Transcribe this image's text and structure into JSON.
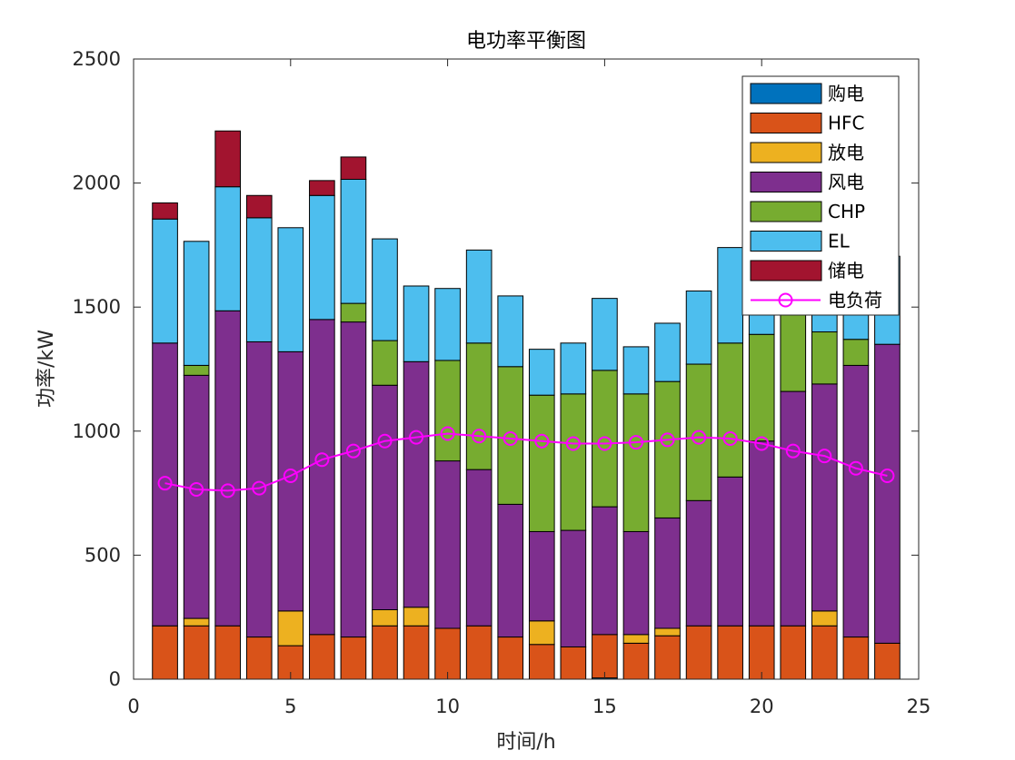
{
  "chart_data": {
    "type": "bar",
    "stacked": true,
    "title": "电功率平衡图",
    "xlabel": "时间/h",
    "ylabel": "功率/kW",
    "xlim": [
      0,
      25
    ],
    "ylim": [
      0,
      2500
    ],
    "xticks": [
      0,
      5,
      10,
      15,
      20,
      25
    ],
    "yticks": [
      0,
      500,
      1000,
      1500,
      2000,
      2500
    ],
    "legend_position": "top-right",
    "grid": false,
    "x": [
      1,
      2,
      3,
      4,
      5,
      6,
      7,
      8,
      9,
      10,
      11,
      12,
      13,
      14,
      15,
      16,
      17,
      18,
      19,
      20,
      21,
      22,
      23,
      24
    ],
    "series": [
      {
        "name": "购电",
        "color": "#0072BD",
        "values": [
          0,
          0,
          0,
          0,
          0,
          0,
          0,
          0,
          0,
          0,
          0,
          0,
          0,
          0,
          5,
          0,
          0,
          0,
          0,
          0,
          0,
          0,
          0,
          0
        ]
      },
      {
        "name": "HFC",
        "color": "#D95319",
        "values": [
          215,
          215,
          215,
          170,
          135,
          180,
          170,
          215,
          215,
          205,
          215,
          170,
          140,
          130,
          175,
          145,
          175,
          215,
          215,
          215,
          215,
          215,
          170,
          145
        ]
      },
      {
        "name": "放电",
        "color": "#EDB120",
        "values": [
          0,
          30,
          0,
          0,
          140,
          0,
          0,
          65,
          75,
          0,
          0,
          0,
          95,
          0,
          0,
          35,
          30,
          0,
          0,
          0,
          0,
          60,
          0,
          0
        ]
      },
      {
        "name": "风电",
        "color": "#7E2F8E",
        "values": [
          1140,
          980,
          1270,
          1190,
          1045,
          1270,
          1270,
          905,
          990,
          675,
          630,
          535,
          360,
          470,
          515,
          415,
          445,
          505,
          600,
          745,
          945,
          915,
          1095,
          1205
        ]
      },
      {
        "name": "CHP",
        "color": "#77AC30",
        "values": [
          0,
          40,
          0,
          0,
          0,
          0,
          75,
          180,
          0,
          405,
          510,
          555,
          550,
          550,
          550,
          555,
          550,
          550,
          540,
          430,
          345,
          210,
          105,
          0
        ]
      },
      {
        "name": "EL",
        "color": "#4DBEEE",
        "values": [
          500,
          500,
          500,
          500,
          500,
          500,
          500,
          410,
          305,
          290,
          375,
          285,
          185,
          205,
          290,
          190,
          235,
          295,
          385,
          440,
          365,
          240,
          300,
          355
        ]
      },
      {
        "name": "储电",
        "color": "#A2142F",
        "values": [
          65,
          0,
          225,
          90,
          0,
          60,
          90,
          0,
          0,
          0,
          0,
          0,
          0,
          0,
          0,
          0,
          0,
          0,
          0,
          0,
          0,
          0,
          0,
          0
        ]
      },
      {
        "name": "电负荷",
        "color": "#FF00FF",
        "type": "line",
        "marker": "circle",
        "values": [
          790,
          765,
          760,
          770,
          820,
          885,
          920,
          960,
          975,
          990,
          980,
          970,
          960,
          950,
          950,
          955,
          965,
          975,
          970,
          950,
          920,
          900,
          850,
          820
        ]
      }
    ]
  }
}
